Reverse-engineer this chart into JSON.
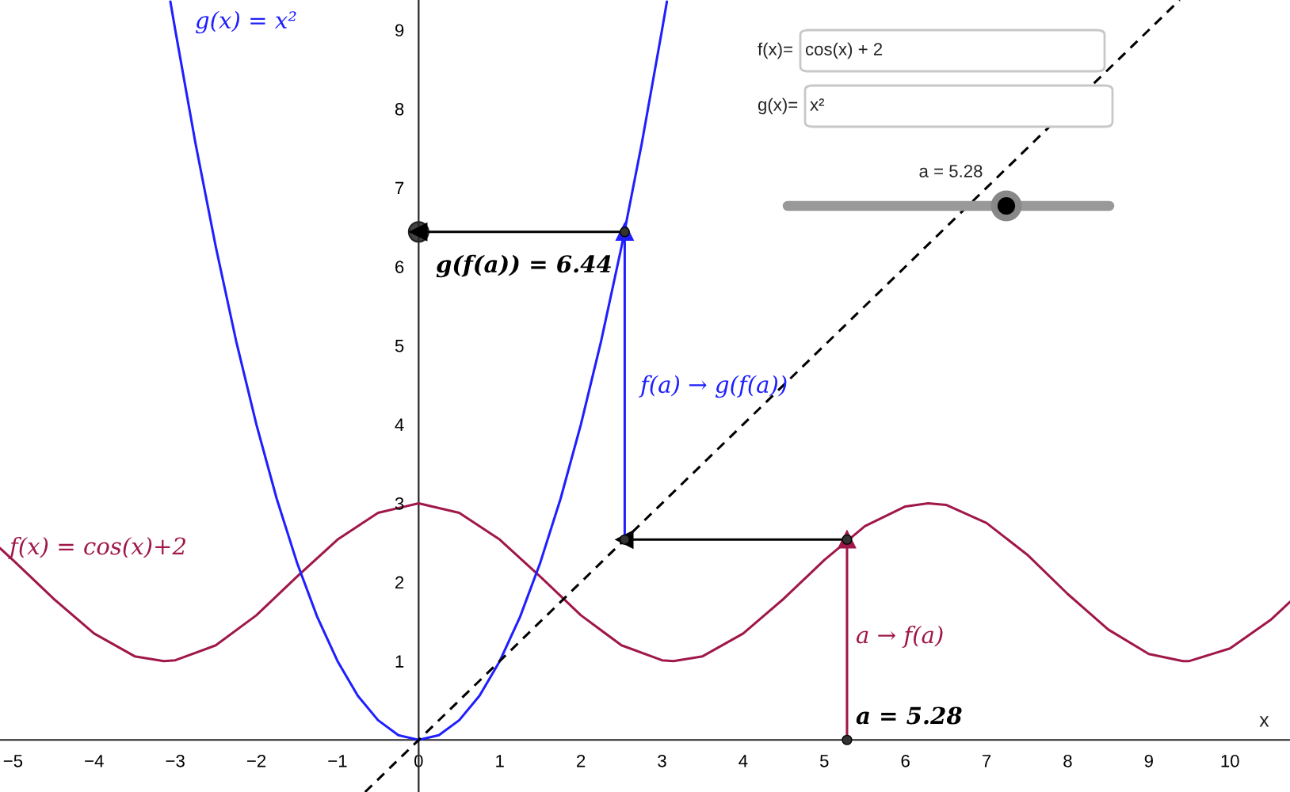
{
  "chart_data": {
    "type": "line",
    "xlim": [
      -5.16,
      10.74
    ],
    "ylim": [
      -0.66,
      9.38
    ],
    "xticks": [
      {
        "value": -5,
        "label": "−5"
      },
      {
        "value": -4,
        "label": "−4"
      },
      {
        "value": -3,
        "label": "−3"
      },
      {
        "value": -2,
        "label": "−2"
      },
      {
        "value": -1,
        "label": "−1"
      },
      0,
      1,
      2,
      3,
      4,
      5,
      6,
      7,
      8,
      9,
      10
    ],
    "yticks": [
      1,
      2,
      3,
      4,
      5,
      6,
      7,
      8,
      9
    ],
    "xlabel": "x",
    "grid": false,
    "series": [
      {
        "color": "#a0174a",
        "x": [
          -5.16,
          -5,
          -4.5,
          -4,
          -3.5,
          -3.14,
          -3,
          -2.5,
          -2,
          -1.5,
          -1,
          -0.5,
          0,
          0.5,
          1,
          1.5,
          2,
          2.5,
          3,
          3.14,
          3.5,
          4,
          4.5,
          5,
          5.5,
          6,
          6.28,
          6.5,
          7,
          7.5,
          8,
          8.5,
          9,
          9.42,
          9.5,
          10,
          10.5,
          10.74
        ],
        "values": [
          2.43,
          2.28,
          1.79,
          1.35,
          1.06,
          1.0,
          1.01,
          1.2,
          1.58,
          2.07,
          2.54,
          2.88,
          3.0,
          2.88,
          2.54,
          2.07,
          1.58,
          1.2,
          1.01,
          1.0,
          1.06,
          1.35,
          1.79,
          2.28,
          2.71,
          2.96,
          3.0,
          2.98,
          2.75,
          2.35,
          1.85,
          1.4,
          1.09,
          1.0,
          1.0,
          1.16,
          1.52,
          1.75
        ]
      },
      {
        "color": "#1f1fff",
        "x": [
          -3.06,
          -3,
          -2.75,
          -2.5,
          -2.25,
          -2,
          -1.75,
          -1.5,
          -1.25,
          -1,
          -0.75,
          -0.5,
          -0.25,
          0,
          0.25,
          0.5,
          0.75,
          1,
          1.25,
          1.5,
          1.75,
          2,
          2.25,
          2.5,
          2.75,
          3,
          3.06
        ],
        "values": [
          9.36,
          9,
          7.56,
          6.25,
          5.06,
          4,
          3.06,
          2.25,
          1.56,
          1,
          0.56,
          0.25,
          0.06,
          0,
          0.06,
          0.25,
          0.56,
          1,
          1.56,
          2.25,
          3.06,
          4,
          5.06,
          6.25,
          7.56,
          9,
          9.36
        ]
      },
      {
        "type": "line",
        "color": "#000000",
        "line_style": "dashed",
        "x": [
          -0.66,
          9.38
        ],
        "values": [
          -0.66,
          9.38
        ]
      },
      {
        "type": "line",
        "color": "#a0174a",
        "marker": "triangle",
        "x": [
          5.28,
          5.28
        ],
        "values": [
          0,
          2.54
        ]
      },
      {
        "type": "line",
        "color": "#000000",
        "marker": "triangle",
        "x": [
          5.28,
          2.54
        ],
        "values": [
          2.54,
          2.54
        ]
      },
      {
        "type": "line",
        "color": "#1f1fff",
        "marker": "triangle",
        "x": [
          2.54,
          2.54
        ],
        "values": [
          2.54,
          6.44
        ]
      },
      {
        "type": "line",
        "color": "#000000",
        "marker": "triangle",
        "x": [
          2.54,
          0
        ],
        "values": [
          6.44,
          6.44
        ]
      },
      {
        "type": "scatter",
        "color": "#333333",
        "x": [
          5.28,
          5.28,
          2.54,
          2.54
        ],
        "values": [
          0,
          2.54,
          2.54,
          6.44
        ]
      },
      {
        "type": "bubble",
        "color": "#444444",
        "x": [
          0
        ],
        "values": [
          6.44
        ],
        "sizes": [
          1
        ]
      }
    ],
    "annotations": [
      "f(x) = cos(x)+2",
      "g(x) = x²",
      "a → f(a)",
      "f(a) → g(f(a))",
      "g(f(a)) = 6.44",
      "a = 5.28",
      "f(x)=",
      "cos(x) + 2",
      "g(x)=",
      "x²",
      "a = 5.28"
    ]
  }
}
